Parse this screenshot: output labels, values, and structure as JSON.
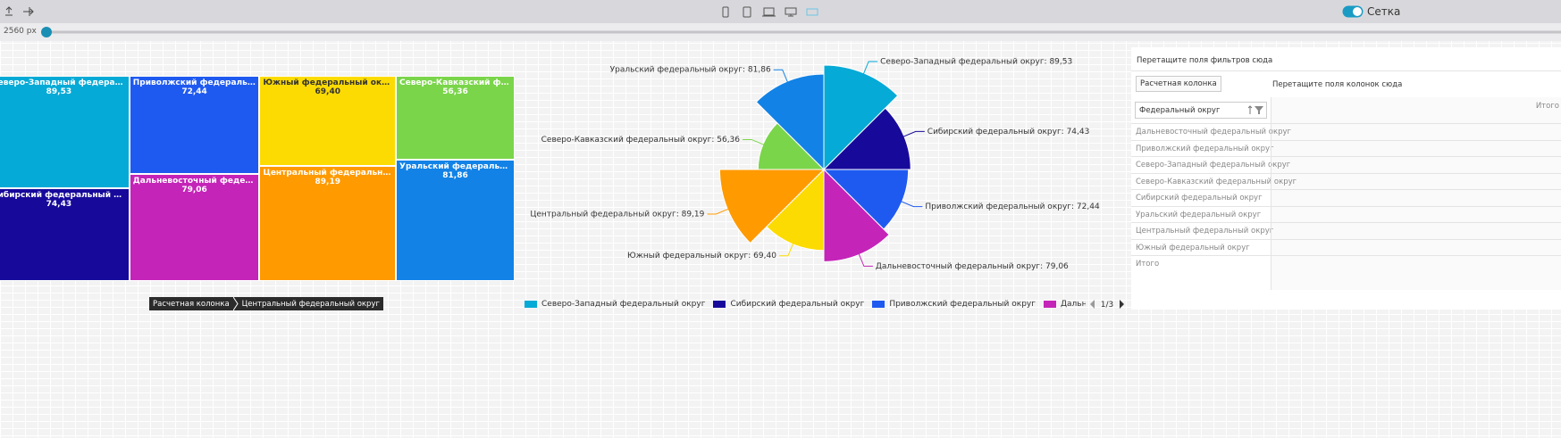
{
  "toolbar": {
    "width_label": "2560 px",
    "grid_toggle": "Сетка"
  },
  "chart_data": [
    {
      "type": "treemap",
      "categories": [
        "Северо-Западный федеральный округ",
        "Сибирский федеральный округ",
        "Приволжский федеральный округ",
        "Дальневосточный федеральный округ",
        "Южный федеральный округ",
        "Центральный федеральный округ",
        "Северо-Кавказский федеральный округ",
        "Уральский федеральный округ"
      ],
      "values": [
        89.53,
        74.43,
        72.44,
        79.06,
        69.4,
        89.19,
        56.36,
        81.86
      ],
      "value_labels": [
        "89,53",
        "74,43",
        "72,44",
        "79,06",
        "69,40",
        "89,19",
        "56,36",
        "81,86"
      ],
      "colors": [
        "#06aad6",
        "#170a9b",
        "#1f5af0",
        "#c424b8",
        "#fcdb03",
        "#ff9a00",
        "#7ad54a",
        "#1282e6"
      ]
    },
    {
      "type": "pie",
      "rose": true,
      "categories": [
        "Северо-Западный федеральный округ",
        "Сибирский федеральный округ",
        "Приволжский федеральный округ",
        "Дальневосточный федеральный округ",
        "Южный федеральный округ",
        "Центральный федеральный округ",
        "Северо-Кавказский федеральный округ",
        "Уральский федеральный округ"
      ],
      "values": [
        89.53,
        74.43,
        72.44,
        79.06,
        69.4,
        89.19,
        56.36,
        81.86
      ],
      "value_labels": [
        "Северо-Западный федеральный округ: 89,53",
        "Сибирский федеральный округ: 74,43",
        "Приволжский федеральный округ: 72,44",
        "Дальневосточный федеральный округ: 79,06",
        "Южный федеральный округ: 69,40",
        "Центральный федеральный округ: 89,19",
        "Северо-Кавказский федеральный округ: 56,36",
        "Уральский федеральный округ: 81,86"
      ],
      "colors": [
        "#06aad6",
        "#170a9b",
        "#1f5af0",
        "#c424b8",
        "#fcdb03",
        "#ff9a00",
        "#7ad54a",
        "#1282e6"
      ],
      "legend": "bottom",
      "legend_page": "1/3"
    }
  ],
  "breadcrumb": [
    "Расчетная колонка",
    "Центральный федеральный округ"
  ],
  "pivot": {
    "filter_drop": "Перетащите поля фильтров сюда",
    "calc_button": "Расчетная колонка",
    "column_drop": "Перетащите поля колонок сюда",
    "row_field": "Федеральный округ",
    "total_header": "Итого",
    "rows": [
      "Дальневосточный федеральный округ",
      "Приволжский федеральный округ",
      "Северо-Западный федеральный округ",
      "Северо-Кавказский федеральный округ",
      "Сибирский федеральный округ",
      "Уральский федеральный округ",
      "Центральный федеральный округ",
      "Южный федеральный округ",
      "Итого"
    ]
  }
}
